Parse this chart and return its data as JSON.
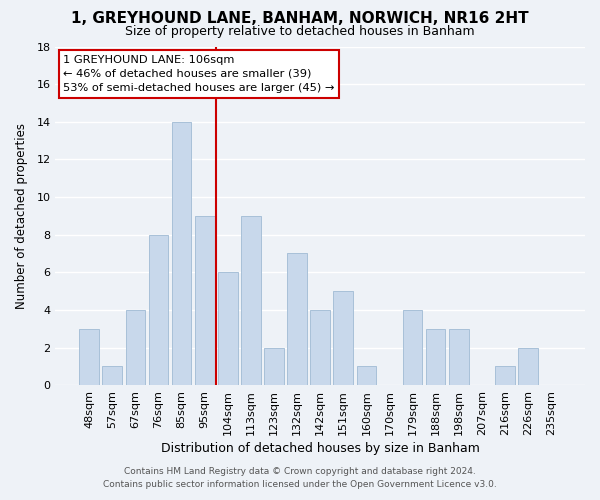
{
  "title": "1, GREYHOUND LANE, BANHAM, NORWICH, NR16 2HT",
  "subtitle": "Size of property relative to detached houses in Banham",
  "xlabel": "Distribution of detached houses by size in Banham",
  "ylabel": "Number of detached properties",
  "bar_color": "#c8d8eb",
  "bar_edge_color": "#a8c0d8",
  "categories": [
    "48sqm",
    "57sqm",
    "67sqm",
    "76sqm",
    "85sqm",
    "95sqm",
    "104sqm",
    "113sqm",
    "123sqm",
    "132sqm",
    "142sqm",
    "151sqm",
    "160sqm",
    "170sqm",
    "179sqm",
    "188sqm",
    "198sqm",
    "207sqm",
    "216sqm",
    "226sqm",
    "235sqm"
  ],
  "values": [
    3,
    1,
    4,
    8,
    14,
    9,
    6,
    9,
    2,
    7,
    4,
    5,
    1,
    0,
    4,
    3,
    3,
    0,
    1,
    2,
    0
  ],
  "ylim": [
    0,
    18
  ],
  "yticks": [
    0,
    2,
    4,
    6,
    8,
    10,
    12,
    14,
    16,
    18
  ],
  "vline_x": 5.5,
  "vline_color": "#cc0000",
  "annotation_line1": "1 GREYHOUND LANE: 106sqm",
  "annotation_line2": "← 46% of detached houses are smaller (39)",
  "annotation_line3": "53% of semi-detached houses are larger (45) →",
  "annotation_box_color": "#ffffff",
  "annotation_box_edge": "#cc0000",
  "footer_line1": "Contains HM Land Registry data © Crown copyright and database right 2024.",
  "footer_line2": "Contains public sector information licensed under the Open Government Licence v3.0.",
  "background_color": "#eef2f7",
  "grid_color": "#ffffff",
  "title_fontsize": 11,
  "subtitle_fontsize": 9
}
